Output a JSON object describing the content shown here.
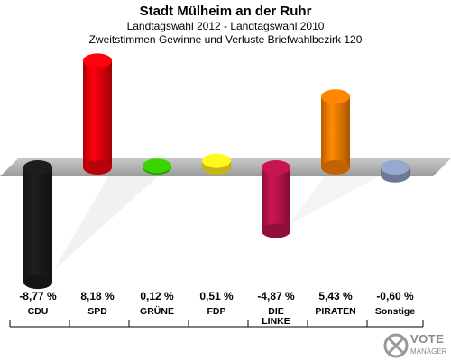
{
  "titles": {
    "title": "Stadt Mülheim an der Ruhr",
    "subtitle": "Landtagswahl 2012 - Landtagswahl 2010",
    "subtitle2": "Zweitstimmen Gewinne und Verluste Briefwahlbezirk 120"
  },
  "logo": {
    "text": "VOTE",
    "subtext": "MANAGER"
  },
  "chart_data": {
    "type": "bar",
    "categories": [
      "CDU",
      "SPD",
      "GRÜNE",
      "FDP",
      "DIE LINKE",
      "PIRATEN",
      "Sonstige"
    ],
    "category_lines": [
      [
        "CDU"
      ],
      [
        "SPD"
      ],
      [
        "GRÜNE"
      ],
      [
        "FDP"
      ],
      [
        "DIE",
        "LINKE"
      ],
      [
        "PIRATEN"
      ],
      [
        "Sonstige"
      ]
    ],
    "values": [
      -8.77,
      8.18,
      0.12,
      0.51,
      -4.87,
      5.43,
      -0.6
    ],
    "value_labels": [
      "-8,77 %",
      "8,18 %",
      "0,12 %",
      "0,51 %",
      "-4,87 %",
      "5,43 %",
      "-0,60 %"
    ],
    "colors": [
      "#1a1a1a",
      "#e8000b",
      "#35c200",
      "#f7e11c",
      "#b5134b",
      "#f47a00",
      "#8899bb"
    ],
    "unit": "%",
    "ylim": [
      -9,
      9
    ],
    "grid": false,
    "legend": "none"
  }
}
